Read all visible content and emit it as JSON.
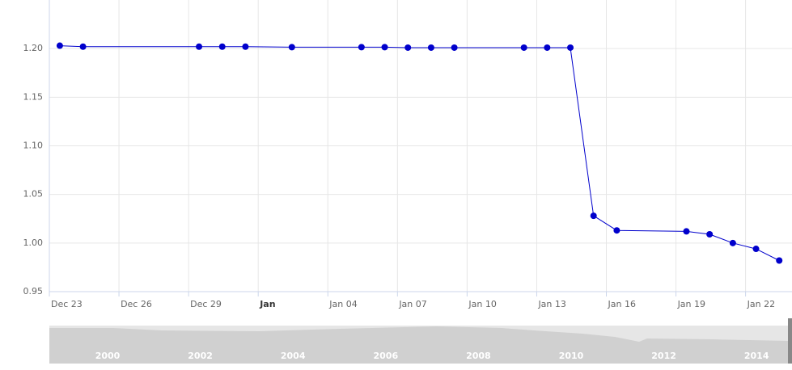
{
  "chart_data": {
    "type": "line",
    "x": [
      "Dec 23",
      "Dec 24",
      "Dec 29",
      "Dec 30",
      "Dec 31",
      "Jan 02",
      "Jan 05",
      "Jan 06",
      "Jan 07",
      "Jan 08",
      "Jan 09",
      "Jan 12",
      "Jan 13",
      "Jan 14",
      "Jan 15",
      "Jan 16",
      "Jan 19",
      "Jan 20",
      "Jan 21",
      "Jan 22",
      "Jan 23"
    ],
    "series": [
      {
        "color": "#0000cc",
        "values": [
          1.203,
          1.202,
          1.202,
          1.202,
          1.202,
          1.2015,
          1.2015,
          1.2015,
          1.201,
          1.201,
          1.201,
          1.201,
          1.201,
          1.201,
          1.028,
          1.013,
          1.012,
          1.009,
          1.0,
          0.994,
          0.982
        ]
      }
    ],
    "xlim": [
      "Dec 23",
      "Jan 24"
    ],
    "xticks": [
      "Dec 23",
      "Dec 26",
      "Dec 29",
      {
        "value": "Jan 01",
        "label": "Jan"
      },
      "Jan 04",
      "Jan 07",
      "Jan 10",
      "Jan 13",
      "Jan 16",
      "Jan 19",
      "Jan 22"
    ],
    "ylim": [
      0.95,
      1.25
    ],
    "yticks": [
      0.95,
      {
        "value": 1.0,
        "label": "1.00"
      },
      1.05,
      {
        "value": 1.1,
        "label": "1.10"
      },
      1.15,
      {
        "value": 1.2,
        "label": "1.20"
      }
    ],
    "grid": true,
    "navigator": {
      "labels": [
        "2000",
        "2002",
        "2004",
        "2006",
        "2008",
        "2010",
        "2012",
        "2014"
      ]
    }
  }
}
